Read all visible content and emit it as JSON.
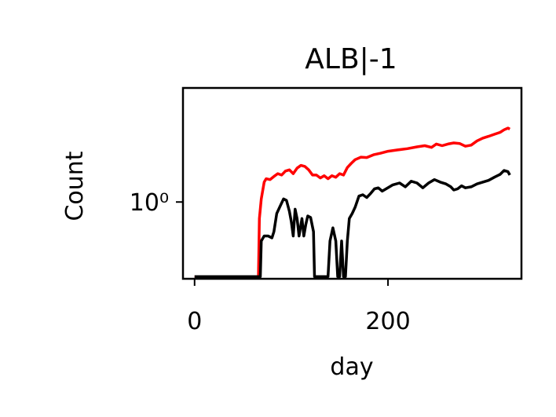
{
  "chart_data": {
    "type": "line",
    "title": "ALB|-1",
    "xlabel": "day",
    "ylabel": "Count",
    "xlim": [
      -12,
      338
    ],
    "x_ticks": [
      0,
      200
    ],
    "x_tick_labels": [
      "0",
      "200"
    ],
    "y_scale": "log",
    "ylim_log10": [
      -1.03,
      1.53
    ],
    "y_ticks": [
      1
    ],
    "y_tick_labels": [
      "10⁰"
    ],
    "grid": false,
    "legend": "none",
    "series": [
      {
        "color": "#ff0000",
        "points": [
          [
            0,
            0.1
          ],
          [
            66,
            0.1
          ],
          [
            67,
            0.6
          ],
          [
            69,
            1.1
          ],
          [
            72,
            1.85
          ],
          [
            74,
            2.05
          ],
          [
            78,
            2.0
          ],
          [
            82,
            2.2
          ],
          [
            86,
            2.4
          ],
          [
            90,
            2.3
          ],
          [
            94,
            2.6
          ],
          [
            98,
            2.7
          ],
          [
            102,
            2.4
          ],
          [
            106,
            2.85
          ],
          [
            110,
            3.1
          ],
          [
            114,
            3.0
          ],
          [
            118,
            2.7
          ],
          [
            122,
            2.3
          ],
          [
            126,
            2.3
          ],
          [
            130,
            2.1
          ],
          [
            134,
            2.25
          ],
          [
            138,
            2.05
          ],
          [
            142,
            2.25
          ],
          [
            146,
            2.15
          ],
          [
            150,
            2.4
          ],
          [
            154,
            2.3
          ],
          [
            158,
            2.9
          ],
          [
            162,
            3.3
          ],
          [
            166,
            3.7
          ],
          [
            172,
            4.0
          ],
          [
            178,
            3.95
          ],
          [
            185,
            4.3
          ],
          [
            192,
            4.5
          ],
          [
            200,
            4.8
          ],
          [
            210,
            5.0
          ],
          [
            220,
            5.2
          ],
          [
            230,
            5.5
          ],
          [
            238,
            5.7
          ],
          [
            245,
            5.4
          ],
          [
            250,
            6.0
          ],
          [
            256,
            5.7
          ],
          [
            262,
            6.0
          ],
          [
            268,
            6.2
          ],
          [
            274,
            6.1
          ],
          [
            280,
            5.6
          ],
          [
            286,
            5.8
          ],
          [
            292,
            6.6
          ],
          [
            298,
            7.2
          ],
          [
            304,
            7.6
          ],
          [
            310,
            8.1
          ],
          [
            316,
            8.6
          ],
          [
            320,
            9.3
          ],
          [
            324,
            9.8
          ],
          [
            326,
            9.5
          ]
        ]
      },
      {
        "color": "#000000",
        "points": [
          [
            0,
            0.1
          ],
          [
            68,
            0.1
          ],
          [
            69,
            0.3
          ],
          [
            72,
            0.35
          ],
          [
            76,
            0.35
          ],
          [
            80,
            0.33
          ],
          [
            82,
            0.4
          ],
          [
            85,
            0.7
          ],
          [
            88,
            0.85
          ],
          [
            92,
            1.1
          ],
          [
            95,
            1.05
          ],
          [
            98,
            0.75
          ],
          [
            100,
            0.55
          ],
          [
            102,
            0.35
          ],
          [
            104,
            0.8
          ],
          [
            106,
            0.6
          ],
          [
            108,
            0.35
          ],
          [
            111,
            0.6
          ],
          [
            113,
            0.35
          ],
          [
            115,
            0.5
          ],
          [
            117,
            0.65
          ],
          [
            120,
            0.62
          ],
          [
            123,
            0.4
          ],
          [
            124,
            0.1
          ],
          [
            138,
            0.1
          ],
          [
            140,
            0.3
          ],
          [
            143,
            0.45
          ],
          [
            146,
            0.3
          ],
          [
            148,
            0.1
          ],
          [
            150,
            0.1
          ],
          [
            152,
            0.3
          ],
          [
            154,
            0.1
          ],
          [
            156,
            0.1
          ],
          [
            158,
            0.3
          ],
          [
            160,
            0.6
          ],
          [
            163,
            0.7
          ],
          [
            166,
            0.85
          ],
          [
            170,
            1.2
          ],
          [
            174,
            1.25
          ],
          [
            178,
            1.15
          ],
          [
            182,
            1.3
          ],
          [
            186,
            1.5
          ],
          [
            190,
            1.55
          ],
          [
            194,
            1.4
          ],
          [
            198,
            1.5
          ],
          [
            205,
            1.7
          ],
          [
            212,
            1.8
          ],
          [
            218,
            1.6
          ],
          [
            224,
            1.9
          ],
          [
            230,
            1.8
          ],
          [
            236,
            1.55
          ],
          [
            242,
            1.8
          ],
          [
            248,
            2.0
          ],
          [
            254,
            1.85
          ],
          [
            260,
            1.75
          ],
          [
            265,
            1.6
          ],
          [
            268,
            1.45
          ],
          [
            272,
            1.5
          ],
          [
            276,
            1.65
          ],
          [
            280,
            1.55
          ],
          [
            286,
            1.6
          ],
          [
            292,
            1.75
          ],
          [
            298,
            1.85
          ],
          [
            304,
            1.95
          ],
          [
            310,
            2.15
          ],
          [
            316,
            2.35
          ],
          [
            320,
            2.65
          ],
          [
            324,
            2.55
          ],
          [
            326,
            2.3
          ]
        ]
      }
    ]
  }
}
